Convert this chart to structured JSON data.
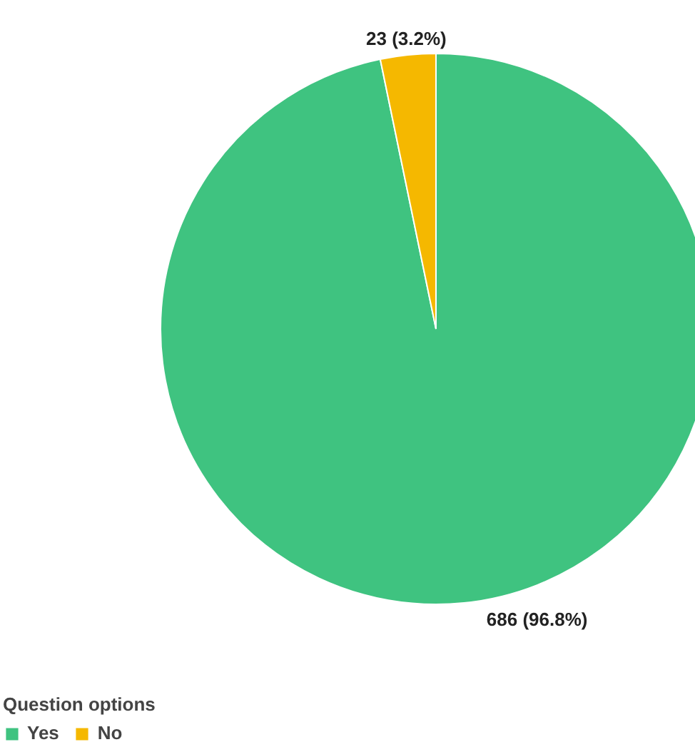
{
  "chart_data": {
    "type": "pie",
    "legend_title": "Question options",
    "legend": "bottom left",
    "categories": [
      "Yes",
      "No"
    ],
    "values": [
      686,
      23
    ],
    "colors": [
      "#3fc380",
      "#f5b800"
    ],
    "value_labels": [
      "686 (96.8%)",
      "23 (3.2%)"
    ]
  }
}
